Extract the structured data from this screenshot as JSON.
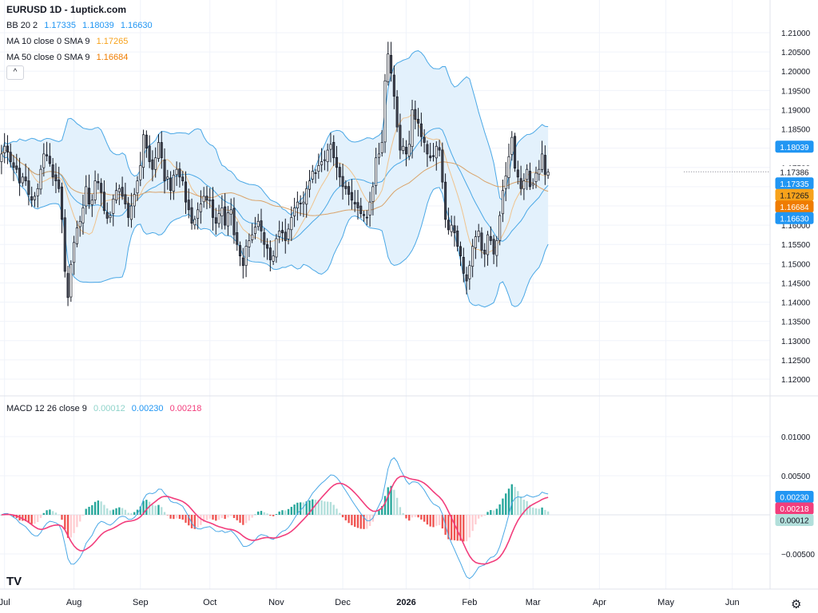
{
  "title": "EURUSD 1D - 1uptick.com",
  "legend": {
    "bb": {
      "label": "BB 20 2",
      "mid": "1.17335",
      "upper": "1.18039",
      "lower": "1.16630"
    },
    "ma10": {
      "label": "MA 10 close 0 SMA 9",
      "value": "1.17265"
    },
    "ma50": {
      "label": "MA 50 close 0 SMA 9",
      "value": "1.16684"
    },
    "macd": {
      "label": "MACD 12 26 close 9",
      "hist": "0.00012",
      "macd": "0.00230",
      "signal": "0.00218"
    }
  },
  "colors": {
    "up": "#ffffff",
    "down": "#434651",
    "wick": "#131722",
    "bb_line": "#4aa8e6",
    "bb_fill": "#e3f1fc",
    "ma10": "#efc38e",
    "ma50": "#d9a36a",
    "macd": "#4aa8e6",
    "signal": "#f23d7c",
    "hist_pos_strong": "#26a69a",
    "hist_pos_weak": "#b2dfdb",
    "hist_neg_strong": "#ef5350",
    "hist_neg_weak": "#ffcdd2",
    "grid": "#f0f3fa"
  },
  "icons": {
    "collapse": "chevron-up-icon",
    "logo": "tradingview-logo-icon",
    "settings": "gear-icon"
  },
  "chart_data": {
    "type": "candlestick",
    "price_axis": {
      "ylim": [
        1.1175,
        1.2125
      ],
      "ticks": [
        "1.12000",
        "1.12500",
        "1.13000",
        "1.13500",
        "1.14000",
        "1.14500",
        "1.15000",
        "1.15500",
        "1.16000",
        "1.16500",
        "1.17000",
        "1.17500",
        "1.18000",
        "1.18500",
        "1.19000",
        "1.19500",
        "1.20000",
        "1.20500",
        "1.21000"
      ]
    },
    "price_tags": [
      {
        "value": "1.18039",
        "price": 1.18039,
        "bg": "#2196f3",
        "fg": "#ffffff"
      },
      {
        "value": "1.17386",
        "price": 1.17386,
        "bg": "#ffffff",
        "fg": "#131722"
      },
      {
        "value": "1.17335",
        "price": 1.17335,
        "bg": "#2196f3",
        "fg": "#ffffff"
      },
      {
        "value": "1.17265",
        "price": 1.17265,
        "bg": "#f7a21b",
        "fg": "#131722"
      },
      {
        "value": "1.16684",
        "price": 1.16684,
        "bg": "#ef7c00",
        "fg": "#ffffff"
      },
      {
        "value": "1.16630",
        "price": 1.1663,
        "bg": "#2196f3",
        "fg": "#ffffff"
      }
    ],
    "macd_axis": {
      "ylim": [
        -0.0075,
        0.013
      ],
      "ticks": [
        {
          "label": "0.01000",
          "value": 0.01
        },
        {
          "label": "0.00500",
          "value": 0.005
        },
        {
          "label": "−0.00500",
          "value": -0.005
        }
      ]
    },
    "macd_tags": [
      {
        "value": "0.00230",
        "v": 0.0023,
        "bg": "#2196f3",
        "fg": "#ffffff"
      },
      {
        "value": "0.00218",
        "v": 0.00218,
        "bg": "#f23d7c",
        "fg": "#ffffff"
      },
      {
        "value": "0.00012",
        "v": 0.00012,
        "bg": "#b2dfdb",
        "fg": "#131722"
      }
    ],
    "time_axis": [
      "Jul",
      "Aug",
      "Sep",
      "Oct",
      "Nov",
      "Dec",
      "2026",
      "Feb",
      "Mar",
      "Apr",
      "May",
      "Jun"
    ],
    "time_axis_bar_index": [
      1,
      24,
      46,
      69,
      91,
      113,
      134,
      155,
      176,
      198,
      220,
      242
    ],
    "bars_total": 255,
    "last_bar_index": 226,
    "closes": [
      1.1785,
      1.1805,
      1.179,
      1.1765,
      1.175,
      1.1745,
      1.171,
      1.1725,
      1.1715,
      1.168,
      1.1665,
      1.1675,
      1.1695,
      1.1745,
      1.1785,
      1.178,
      1.176,
      1.1725,
      1.1715,
      1.1695,
      1.1615,
      1.148,
      1.1412,
      1.1498,
      1.1555,
      1.1593,
      1.161,
      1.1645,
      1.17,
      1.1655,
      1.1665,
      1.1715,
      1.171,
      1.1685,
      1.1638,
      1.1618,
      1.1625,
      1.1668,
      1.169,
      1.1695,
      1.1675,
      1.1655,
      1.162,
      1.165,
      1.168,
      1.1715,
      1.1755,
      1.1835,
      1.18,
      1.1765,
      1.1745,
      1.1775,
      1.1815,
      1.1775,
      1.1715,
      1.1725,
      1.169,
      1.173,
      1.1745,
      1.1725,
      1.1715,
      1.166,
      1.164,
      1.1605,
      1.1615,
      1.164,
      1.1655,
      1.1675,
      1.1665,
      1.1665,
      1.162,
      1.1605,
      1.163,
      1.1645,
      1.16,
      1.1632,
      1.164,
      1.1575,
      1.155,
      1.152,
      1.1495,
      1.1545,
      1.156,
      1.1575,
      1.1595,
      1.161,
      1.1585,
      1.155,
      1.154,
      1.151,
      1.152,
      1.1565,
      1.1585,
      1.158,
      1.156,
      1.159,
      1.162,
      1.1645,
      1.166,
      1.1655,
      1.166,
      1.1695,
      1.1715,
      1.174,
      1.1735,
      1.1755,
      1.1765,
      1.177,
      1.1795,
      1.181,
      1.1775,
      1.175,
      1.1725,
      1.17,
      1.1695,
      1.168,
      1.1665,
      1.1655,
      1.1645,
      1.163,
      1.1625,
      1.162,
      1.166,
      1.17,
      1.1775,
      1.1785,
      1.1815,
      1.1975,
      1.2045,
      1.1995,
      1.1935,
      1.1855,
      1.1795,
      1.1805,
      1.1785,
      1.181,
      1.19,
      1.1875,
      1.1865,
      1.183,
      1.1815,
      1.1785,
      1.1775,
      1.178,
      1.1805,
      1.1795,
      1.1712,
      1.1615,
      1.1588,
      1.16,
      1.158,
      1.1545,
      1.152,
      1.1475,
      1.1455,
      1.1495,
      1.1545,
      1.157,
      1.1585,
      1.1535,
      1.1525,
      1.1575,
      1.156,
      1.1525,
      1.156,
      1.1625,
      1.169,
      1.1728,
      1.1778,
      1.1828,
      1.1748,
      1.1725,
      1.1695,
      1.1715,
      1.1745,
      1.17,
      1.1708,
      1.1735,
      1.1745,
      1.1785,
      1.1732,
      1.1738
    ],
    "ohlc_note": "opens/highs/lows derived from closes by the drawing script",
    "series": [
      {
        "name": "BB 20 2"
      },
      {
        "name": "MA 10 close 0 SMA 9"
      },
      {
        "name": "MA 50 close 0 SMA 9"
      },
      {
        "name": "MACD 12 26 close 9"
      }
    ]
  }
}
